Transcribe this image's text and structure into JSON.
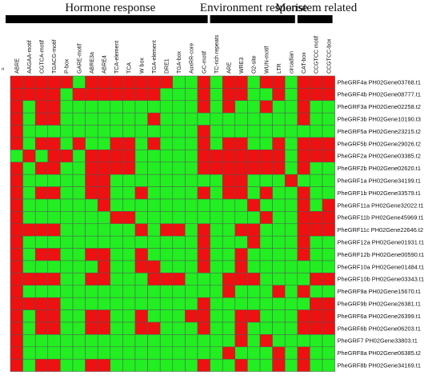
{
  "chart_data": {
    "type": "heatmap",
    "groups": [
      {
        "label": "Hormone response",
        "start": 0,
        "end": 15
      },
      {
        "label": "Environment response",
        "start": 16,
        "end": 22
      },
      {
        "label": "Meristem related",
        "start": 23,
        "end": 25
      }
    ],
    "columns": [
      "ABRE",
      "AAGAA-motif",
      "CGTCA-motif",
      "TGACG-motif",
      "P-box",
      "GARE-motif",
      "ABRE3a",
      "ABRE4",
      "TCA-element",
      "TCA",
      "W box",
      "TGA-element",
      "DRE1",
      "TGA-box",
      "AuxRR-core",
      "GC-motif",
      "TC-rich repeats",
      "ARE",
      "WRE3",
      "O2-site",
      "WUN-motif",
      "LTR",
      "circadian",
      "CAT-box",
      "CCGTCC motif",
      "CCGTCC-box"
    ],
    "rows": [
      "PheGRF4a PH02Gene03768.t1",
      "PheGRF4b PH02Gene08777.t1",
      "PheGRF3a PH02Gene02258.t2",
      "PheGRF3b PH02Gene10190.t3",
      "PheGRF5a PH02Gene23215.t2",
      "PheGRF5b PH02Gene29026.t2",
      "PheGRF2a PH02Gene03385.t2",
      "PheGRF2b PH02Gene02620.t1",
      "PheGRF1a PH02Gene34199.t1",
      "PheGRF1b PH02Gene33579.t1",
      "PheGRF11a PH02Gene32022.t1",
      "PheGRF11b PH02Gene45969.t1",
      "PheGRF11c PH02Gene22646.t2",
      "PheGRF12a PH02Gene01931.t1",
      "PheGRF12b PH02Gene00590.t1",
      "PheGRF10a PH02Gene01484.t1",
      "PheGRF10b PH02Gene03343.t1",
      "PheGRF9a PH02Gene15670.t1",
      "PheGRF9b PH02Gene26381.t1",
      "PheGRF6a PH02Gene26399.t1",
      "PheGRF6b PH02Gene06203.t1",
      "PheGRF7 PH02Gene33803.t1",
      "PheGRF8a PH02Gene06385.t2",
      "PheGRF8b PH02Gene34169.t1"
    ],
    "matrix": [
      [
        1,
        1,
        1,
        1,
        1,
        0,
        1,
        1,
        1,
        1,
        1,
        1,
        1,
        0,
        0,
        1,
        0,
        1,
        1,
        0,
        1,
        1,
        0,
        1,
        1,
        1
      ],
      [
        1,
        1,
        1,
        1,
        0,
        1,
        1,
        1,
        1,
        1,
        1,
        1,
        0,
        0,
        0,
        1,
        0,
        1,
        1,
        0,
        0,
        1,
        0,
        1,
        1,
        1
      ],
      [
        1,
        0,
        1,
        1,
        0,
        0,
        0,
        0,
        0,
        0,
        0,
        0,
        0,
        0,
        0,
        1,
        0,
        1,
        0,
        0,
        1,
        0,
        0,
        1,
        0,
        0
      ],
      [
        1,
        0,
        1,
        1,
        0,
        0,
        0,
        0,
        0,
        0,
        0,
        1,
        0,
        0,
        0,
        0,
        0,
        0,
        0,
        0,
        0,
        0,
        0,
        1,
        0,
        0
      ],
      [
        1,
        0,
        0,
        0,
        0,
        0,
        0,
        0,
        0,
        0,
        0,
        0,
        0,
        0,
        0,
        1,
        0,
        0,
        0,
        0,
        0,
        0,
        0,
        0,
        0,
        0
      ],
      [
        1,
        0,
        1,
        1,
        0,
        1,
        0,
        0,
        1,
        1,
        0,
        1,
        0,
        0,
        0,
        1,
        0,
        1,
        1,
        0,
        0,
        1,
        0,
        1,
        1,
        1
      ],
      [
        0,
        1,
        0,
        1,
        1,
        0,
        1,
        1,
        1,
        1,
        0,
        0,
        0,
        0,
        0,
        1,
        1,
        1,
        1,
        1,
        1,
        1,
        0,
        1,
        1,
        1
      ],
      [
        1,
        0,
        1,
        1,
        0,
        0,
        1,
        1,
        1,
        1,
        0,
        0,
        0,
        0,
        0,
        1,
        1,
        1,
        1,
        1,
        1,
        1,
        0,
        1,
        0,
        0
      ],
      [
        1,
        0,
        0,
        0,
        0,
        0,
        1,
        1,
        0,
        0,
        0,
        0,
        0,
        0,
        0,
        0,
        0,
        1,
        1,
        0,
        0,
        0,
        1,
        0,
        0,
        0
      ],
      [
        1,
        0,
        1,
        1,
        0,
        0,
        1,
        1,
        0,
        0,
        1,
        0,
        0,
        0,
        0,
        1,
        0,
        1,
        1,
        0,
        1,
        0,
        0,
        1,
        0,
        0
      ],
      [
        1,
        0,
        0,
        0,
        0,
        0,
        0,
        1,
        0,
        0,
        0,
        0,
        0,
        0,
        0,
        0,
        0,
        0,
        0,
        1,
        0,
        0,
        0,
        1,
        0,
        1
      ],
      [
        1,
        0,
        0,
        0,
        0,
        0,
        0,
        0,
        1,
        1,
        0,
        0,
        0,
        0,
        0,
        0,
        0,
        0,
        0,
        0,
        1,
        0,
        0,
        1,
        1,
        1
      ],
      [
        1,
        1,
        1,
        1,
        0,
        0,
        0,
        0,
        0,
        0,
        1,
        0,
        1,
        1,
        0,
        1,
        0,
        0,
        1,
        1,
        0,
        0,
        0,
        1,
        1,
        1
      ],
      [
        1,
        0,
        0,
        0,
        0,
        0,
        0,
        0,
        0,
        0,
        0,
        0,
        0,
        0,
        0,
        1,
        0,
        0,
        0,
        1,
        0,
        0,
        0,
        1,
        0,
        0
      ],
      [
        1,
        0,
        1,
        1,
        0,
        0,
        1,
        1,
        0,
        0,
        1,
        0,
        0,
        0,
        0,
        1,
        0,
        0,
        1,
        0,
        0,
        0,
        0,
        1,
        0,
        0
      ],
      [
        1,
        0,
        0,
        0,
        0,
        0,
        0,
        1,
        0,
        0,
        1,
        1,
        0,
        0,
        0,
        1,
        0,
        0,
        1,
        0,
        0,
        0,
        0,
        0,
        0,
        0
      ],
      [
        1,
        1,
        1,
        1,
        0,
        0,
        1,
        1,
        0,
        0,
        0,
        1,
        1,
        1,
        0,
        0,
        0,
        1,
        1,
        1,
        0,
        0,
        0,
        0,
        1,
        1
      ],
      [
        1,
        0,
        0,
        0,
        0,
        0,
        0,
        0,
        0,
        0,
        0,
        0,
        0,
        0,
        0,
        0,
        0,
        1,
        0,
        0,
        0,
        1,
        0,
        1,
        0,
        0
      ],
      [
        1,
        1,
        1,
        1,
        0,
        0,
        0,
        0,
        0,
        0,
        0,
        0,
        0,
        0,
        0,
        1,
        0,
        0,
        0,
        0,
        0,
        0,
        0,
        0,
        1,
        1
      ],
      [
        1,
        0,
        1,
        1,
        0,
        0,
        1,
        1,
        0,
        0,
        1,
        0,
        0,
        0,
        1,
        1,
        0,
        0,
        1,
        1,
        0,
        0,
        0,
        1,
        1,
        1
      ],
      [
        1,
        0,
        1,
        1,
        0,
        0,
        1,
        1,
        0,
        0,
        1,
        1,
        0,
        0,
        0,
        1,
        0,
        0,
        1,
        0,
        0,
        0,
        0,
        1,
        1,
        1
      ],
      [
        1,
        0,
        0,
        0,
        0,
        0,
        0,
        0,
        0,
        0,
        0,
        0,
        0,
        0,
        0,
        0,
        0,
        0,
        1,
        0,
        1,
        0,
        0,
        0,
        0,
        0
      ],
      [
        1,
        0,
        0,
        0,
        0,
        0,
        0,
        0,
        0,
        0,
        0,
        0,
        0,
        0,
        0,
        0,
        0,
        1,
        0,
        0,
        0,
        1,
        0,
        1,
        0,
        0
      ],
      [
        1,
        0,
        1,
        1,
        0,
        0,
        1,
        1,
        0,
        0,
        0,
        0,
        0,
        0,
        0,
        1,
        0,
        0,
        1,
        0,
        0,
        1,
        0,
        1,
        0,
        0
      ]
    ],
    "scale_label": "rt",
    "colors": {
      "present": "#ee1111",
      "absent": "#22ee22",
      "grid": "#555555",
      "group_bar": "#000000"
    },
    "legend": "none"
  }
}
